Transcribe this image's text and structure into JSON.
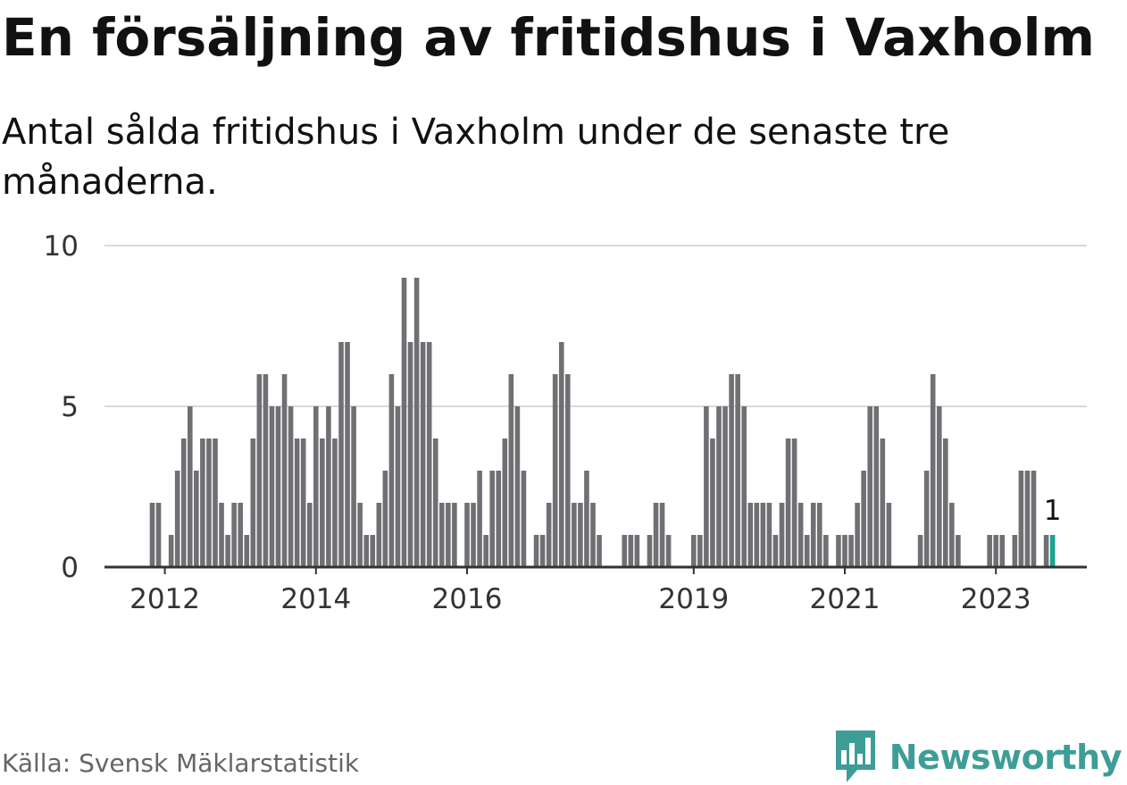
{
  "title": "En försäljning av fritidshus i Vaxholm",
  "subtitle": "Antal sålda fritidshus i Vaxholm under de senaste tre månaderna.",
  "source": "Källa: Svensk Mäklarstatistik",
  "brand": {
    "name": "Newsworthy",
    "color": "#3f9d97"
  },
  "colors": {
    "bar": "#707074",
    "highlight": "#1aa293",
    "grid": "#d9d9d9",
    "axis": "#333333"
  },
  "chart_data": {
    "type": "bar",
    "title": "En försäljning av fritidshus i Vaxholm",
    "subtitle": "Antal sålda fritidshus i Vaxholm under de senaste tre månaderna.",
    "x_start": "2011-11",
    "frequency": "monthly",
    "values": [
      2,
      2,
      0,
      1,
      3,
      4,
      5,
      3,
      4,
      4,
      4,
      2,
      1,
      2,
      2,
      1,
      4,
      6,
      6,
      5,
      5,
      6,
      5,
      4,
      4,
      2,
      5,
      4,
      5,
      4,
      7,
      7,
      5,
      2,
      1,
      1,
      2,
      3,
      6,
      5,
      9,
      7,
      9,
      7,
      7,
      4,
      2,
      2,
      2,
      0,
      2,
      2,
      3,
      1,
      3,
      3,
      4,
      6,
      5,
      3,
      0,
      1,
      1,
      2,
      6,
      7,
      6,
      2,
      2,
      3,
      2,
      1,
      0,
      0,
      0,
      1,
      1,
      1,
      0,
      1,
      2,
      2,
      1,
      0,
      0,
      0,
      1,
      1,
      5,
      4,
      5,
      5,
      6,
      6,
      5,
      2,
      2,
      2,
      2,
      1,
      2,
      4,
      4,
      2,
      1,
      2,
      2,
      1,
      0,
      1,
      1,
      1,
      2,
      3,
      5,
      5,
      4,
      2,
      0,
      0,
      0,
      0,
      1,
      3,
      6,
      5,
      4,
      2,
      1,
      0,
      0,
      0,
      0,
      1,
      1,
      1,
      0,
      1,
      3,
      3,
      3,
      0,
      1,
      1
    ],
    "highlight_last": true,
    "last_value_label": "1",
    "xticks": [
      "2012",
      "2014",
      "2016",
      "2019",
      "2021",
      "2023"
    ],
    "yticks": [
      "0",
      "5",
      "10"
    ],
    "ylim": [
      0,
      10
    ],
    "grid": true,
    "legend": false
  }
}
